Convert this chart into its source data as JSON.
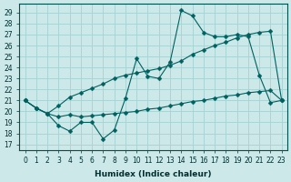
{
  "xlabel": "Humidex (Indice chaleur)",
  "bg_color": "#cce8e8",
  "grid_color": "#aad4d4",
  "line_color": "#006060",
  "xlim": [
    -0.5,
    23.5
  ],
  "ylim": [
    16.5,
    29.8
  ],
  "yticks": [
    17,
    18,
    19,
    20,
    21,
    22,
    23,
    24,
    25,
    26,
    27,
    28,
    29
  ],
  "xticks": [
    0,
    1,
    2,
    3,
    4,
    5,
    6,
    7,
    8,
    9,
    10,
    11,
    12,
    13,
    14,
    15,
    16,
    17,
    18,
    19,
    20,
    21,
    22,
    23
  ],
  "line1_x": [
    0,
    1,
    2,
    3,
    4,
    5,
    6,
    7,
    8,
    9,
    10,
    11,
    12,
    13,
    14,
    15,
    16,
    17,
    18,
    19,
    20,
    21,
    22,
    23
  ],
  "line1_y": [
    21.0,
    20.3,
    19.8,
    18.7,
    18.2,
    19.0,
    19.0,
    17.5,
    18.3,
    21.2,
    24.8,
    23.2,
    23.0,
    24.5,
    29.2,
    28.7,
    27.2,
    26.8,
    26.8,
    27.0,
    26.8,
    23.3,
    20.8,
    21.0
  ],
  "line2_x": [
    0,
    1,
    2,
    3,
    4,
    5,
    6,
    7,
    8,
    9,
    10,
    11,
    12,
    13,
    14,
    15,
    16,
    17,
    18,
    19,
    20,
    21,
    22,
    23
  ],
  "line2_y": [
    21.0,
    20.3,
    19.8,
    20.5,
    21.3,
    21.7,
    22.1,
    22.5,
    23.0,
    23.3,
    23.5,
    23.7,
    23.9,
    24.2,
    24.6,
    25.2,
    25.6,
    26.0,
    26.3,
    26.7,
    27.0,
    27.2,
    27.3,
    21.0
  ],
  "line3_x": [
    0,
    1,
    2,
    3,
    4,
    5,
    6,
    7,
    8,
    9,
    10,
    11,
    12,
    13,
    14,
    15,
    16,
    17,
    18,
    19,
    20,
    21,
    22,
    23
  ],
  "line3_y": [
    21.0,
    20.3,
    19.8,
    19.5,
    19.7,
    19.5,
    19.6,
    19.7,
    19.8,
    19.9,
    20.0,
    20.2,
    20.3,
    20.5,
    20.7,
    20.9,
    21.0,
    21.2,
    21.4,
    21.5,
    21.7,
    21.8,
    21.9,
    21.0
  ],
  "tick_fontsize": 5.5,
  "xlabel_fontsize": 6.5
}
